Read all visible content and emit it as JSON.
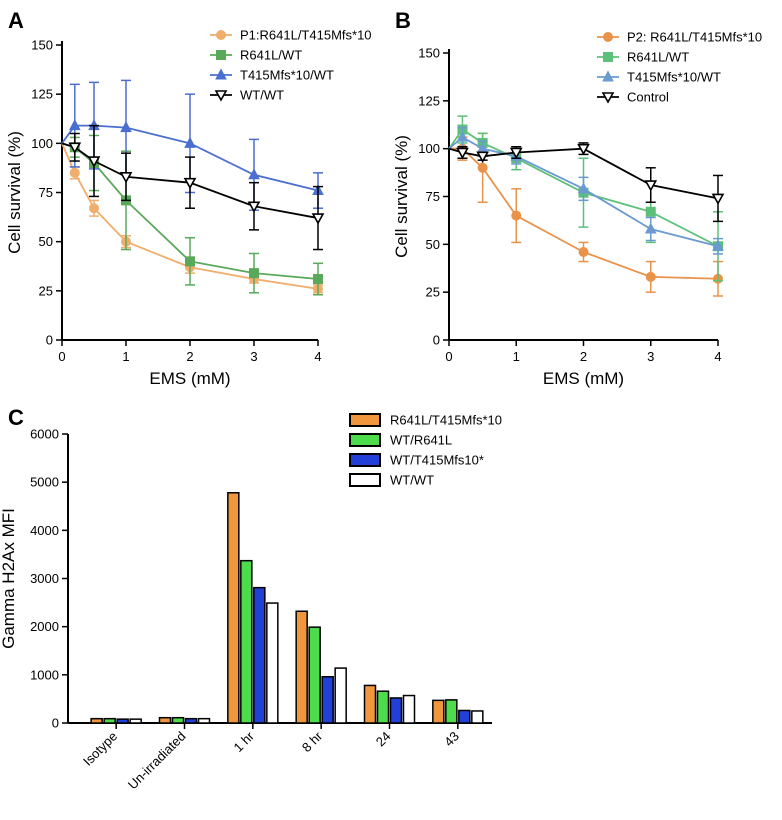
{
  "chart_data": [
    {
      "panel": "A",
      "type": "line",
      "xlabel": "EMS (mM)",
      "ylabel": "Cell survival (%)",
      "xlim": [
        0,
        4
      ],
      "ylim": [
        0,
        150
      ],
      "xticks": [
        0,
        1,
        2,
        3,
        4
      ],
      "yticks": [
        0,
        25,
        50,
        75,
        100,
        125,
        150
      ],
      "legend_position": "top-right",
      "grid": false,
      "series": [
        {
          "name": "P1:R641L/T415Mfs*10",
          "color": "#f0ad6c",
          "marker": "circle",
          "x": [
            0,
            0.2,
            0.5,
            1,
            2,
            3,
            4
          ],
          "y": [
            100,
            85,
            67,
            50,
            37,
            31,
            26
          ],
          "err": [
            0,
            3,
            4,
            3,
            3,
            2,
            2
          ]
        },
        {
          "name": "R641L/WT",
          "color": "#5aa85a",
          "marker": "square",
          "x": [
            0,
            0.2,
            0.5,
            1,
            2,
            3,
            4
          ],
          "y": [
            100,
            98,
            90,
            71,
            40,
            34,
            31
          ],
          "err": [
            0,
            5,
            14,
            25,
            12,
            10,
            8
          ]
        },
        {
          "name": "T415Mfs*10/WT",
          "color": "#4a6fd0",
          "marker": "triangle",
          "x": [
            0,
            0.2,
            0.5,
            1,
            2,
            3,
            4
          ],
          "y": [
            100,
            109,
            109,
            108,
            100,
            84,
            76
          ],
          "err": [
            0,
            21,
            22,
            24,
            25,
            18,
            9
          ]
        },
        {
          "name": "WT/WT",
          "color": "#000000",
          "marker": "triangle-down",
          "x": [
            0,
            0.2,
            0.5,
            1,
            2,
            3,
            4
          ],
          "y": [
            100,
            98,
            91,
            83,
            80,
            68,
            62
          ],
          "err": [
            0,
            7,
            18,
            12,
            13,
            12,
            16
          ]
        }
      ]
    },
    {
      "panel": "B",
      "type": "line",
      "xlabel": "EMS (mM)",
      "ylabel": "Cell survival (%)",
      "xlim": [
        0,
        4
      ],
      "ylim": [
        0,
        150
      ],
      "xticks": [
        0,
        1,
        2,
        3,
        4
      ],
      "yticks": [
        0,
        25,
        50,
        75,
        100,
        125,
        150
      ],
      "legend_position": "top-right",
      "grid": false,
      "series": [
        {
          "name": "P2: R641L/T415Mfs*10",
          "color": "#e8924a",
          "marker": "circle",
          "x": [
            0,
            0.2,
            0.5,
            1,
            2,
            3,
            4
          ],
          "y": [
            100,
            100,
            90,
            65,
            46,
            33,
            32
          ],
          "err": [
            0,
            6,
            18,
            14,
            5,
            8,
            9
          ]
        },
        {
          "name": "R641L/WT",
          "color": "#5cc07a",
          "marker": "square",
          "x": [
            0,
            0.2,
            0.5,
            1,
            2,
            3,
            4
          ],
          "y": [
            100,
            110,
            103,
            95,
            77,
            67,
            49
          ],
          "err": [
            0,
            7,
            5,
            6,
            18,
            16,
            18
          ]
        },
        {
          "name": "T415Mfs*10/WT",
          "color": "#6a9ad0",
          "marker": "triangle",
          "x": [
            0,
            0.2,
            0.5,
            1,
            2,
            3,
            4
          ],
          "y": [
            100,
            106,
            100,
            96,
            79,
            58,
            49
          ],
          "err": [
            0,
            5,
            4,
            4,
            6,
            6,
            4
          ]
        },
        {
          "name": "Control",
          "color": "#000000",
          "marker": "triangle-down",
          "x": [
            0,
            0.2,
            0.5,
            1,
            2,
            3,
            4
          ],
          "y": [
            100,
            98,
            96,
            98,
            100,
            81,
            74
          ],
          "err": [
            0,
            3,
            2,
            3,
            3,
            9,
            12
          ]
        }
      ]
    },
    {
      "panel": "C",
      "type": "bar",
      "ylabel": "Gamma H2Ax MFI",
      "xlabel": "",
      "ylim": [
        0,
        6000
      ],
      "yticks": [
        0,
        1000,
        2000,
        3000,
        4000,
        5000,
        6000
      ],
      "categories": [
        "Isotype",
        "Un-irradiated",
        "1 hr",
        "8 hr",
        "24",
        "43"
      ],
      "legend_position": "top-right",
      "series": [
        {
          "name": "R641L/T415Mfs*10",
          "color": "#f0963c",
          "values": [
            90,
            110,
            4780,
            2320,
            780,
            470
          ]
        },
        {
          "name": "WT/R641L",
          "color": "#4cdc4c",
          "values": [
            90,
            110,
            3370,
            1990,
            660,
            480
          ]
        },
        {
          "name": "WT/T415Mfs10*",
          "color": "#2040d8",
          "values": [
            80,
            90,
            2810,
            960,
            520,
            260
          ]
        },
        {
          "name": "WT/WT",
          "color": "#ffffff",
          "values": [
            80,
            90,
            2490,
            1140,
            570,
            250
          ]
        }
      ]
    }
  ]
}
